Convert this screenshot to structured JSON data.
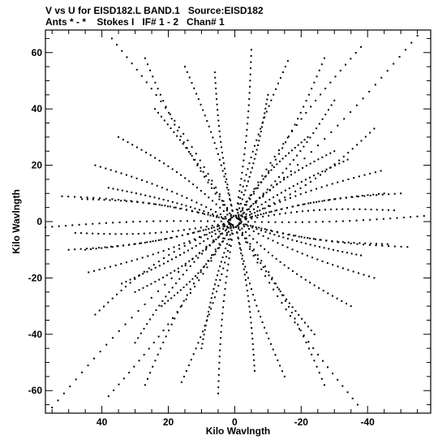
{
  "header": {
    "line1": "V vs U for EISD182.L BAND.1   Source:EISD182",
    "line2": "Ants * - *    Stokes I   IF# 1 - 2   Chan# 1"
  },
  "chart_data": {
    "type": "scatter",
    "title": "V vs U for EISD182.L BAND.1   Source:EISD182",
    "subtitle": "Ants * - *    Stokes I   IF# 1 - 2   Chan# 1",
    "xlabel": "Kilo Wavlngth",
    "ylabel": "Kilo Wavlngth",
    "x_reversed": true,
    "xlim": [
      57,
      -59
    ],
    "ylim": [
      -68,
      68
    ],
    "xticks": [
      40,
      20,
      0,
      -20,
      -40
    ],
    "xtick_labels": [
      "40",
      "20",
      "0",
      "-20",
      "-40"
    ],
    "yticks": [
      60,
      40,
      20,
      0,
      -20,
      -40,
      -60
    ],
    "ytick_labels": [
      "60",
      "40",
      "20",
      "0",
      "-20",
      "-40",
      "-60"
    ],
    "grid": false,
    "marker_color": "#000000",
    "description": "UV coverage: symmetric set of baseline tracks radiating from the origin",
    "tracks": [
      {
        "u_end": 37,
        "v_end": 65,
        "curve": 2
      },
      {
        "u_end": 27,
        "v_end": 58,
        "curve": -2
      },
      {
        "u_end": 15,
        "v_end": 55,
        "curve": 1.5
      },
      {
        "u_end": 6,
        "v_end": 53,
        "curve": -1
      },
      {
        "u_end": -5,
        "v_end": 61,
        "curve": 1
      },
      {
        "u_end": -16,
        "v_end": 57,
        "curve": -1.5
      },
      {
        "u_end": -27,
        "v_end": 58,
        "curve": 2
      },
      {
        "u_end": -38,
        "v_end": 62,
        "curve": -2
      },
      {
        "u_end": -55,
        "v_end": 66,
        "curve": 2
      },
      {
        "u_end": -42,
        "v_end": 33,
        "curve": 3
      },
      {
        "u_end": -50,
        "v_end": 10,
        "curve": -2
      },
      {
        "u_end": -46,
        "v_end": -8,
        "curve": 2
      },
      {
        "u_end": -57,
        "v_end": 2,
        "curve": 1
      },
      {
        "u_end": -44,
        "v_end": 18,
        "curve": -1.5
      },
      {
        "u_end": -30,
        "v_end": 43,
        "curve": 2
      },
      {
        "u_end": -22,
        "v_end": 30,
        "curve": -2
      },
      {
        "u_end": 52,
        "v_end": 9,
        "curve": 2
      },
      {
        "u_end": 48,
        "v_end": -4,
        "curve": -2
      },
      {
        "u_end": 42,
        "v_end": 20,
        "curve": 1.5
      },
      {
        "u_end": 45,
        "v_end": -10,
        "curve": -1.5
      },
      {
        "u_end": 35,
        "v_end": 30,
        "curve": 2
      },
      {
        "u_end": 30,
        "v_end": -25,
        "curve": -2
      },
      {
        "u_end": 24,
        "v_end": 40,
        "curve": 1
      },
      {
        "u_end": -10,
        "v_end": 45,
        "curve": 1
      },
      {
        "u_end": -34,
        "v_end": 22,
        "curve": -1
      },
      {
        "u_end": 38,
        "v_end": 12,
        "curve": 1
      }
    ]
  }
}
